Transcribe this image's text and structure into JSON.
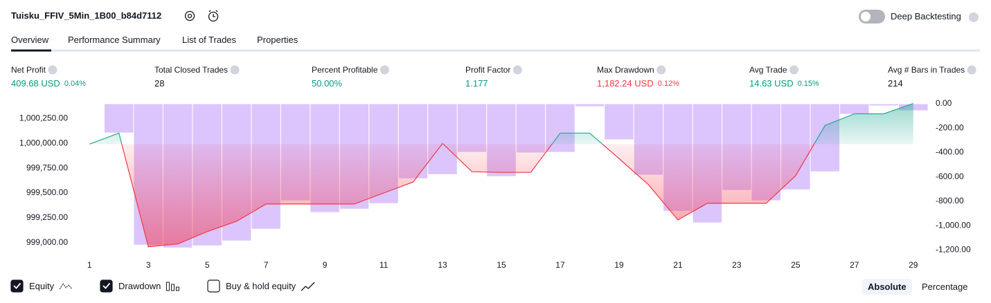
{
  "header": {
    "title": "Tuisku_FFIV_5Min_1B00_b84d7112",
    "toggle_label": "Deep Backtesting",
    "toggle_on": false
  },
  "tabs": {
    "items": [
      "Overview",
      "Performance Summary",
      "List of Trades",
      "Properties"
    ],
    "active": 0
  },
  "stats": [
    {
      "label": "Net Profit",
      "value": "409.68 USD",
      "sub": "0.04%",
      "color": "#089981"
    },
    {
      "label": "Total Closed Trades",
      "value": "28",
      "color": "#131722"
    },
    {
      "label": "Percent Profitable",
      "value": "50.00%",
      "color": "#089981"
    },
    {
      "label": "Profit Factor",
      "value": "1.177",
      "color": "#089981"
    },
    {
      "label": "Max Drawdown",
      "value": "1,182.24 USD",
      "sub": "0.12%",
      "color": "#f23645"
    },
    {
      "label": "Avg Trade",
      "value": "14.63 USD",
      "sub": "0.15%",
      "color": "#089981"
    },
    {
      "label": "Avg # Bars in Trades",
      "value": "214",
      "color": "#131722"
    }
  ],
  "chart_data": {
    "type": "line",
    "x": [
      1,
      2,
      3,
      4,
      5,
      6,
      7,
      8,
      9,
      10,
      11,
      12,
      13,
      14,
      15,
      16,
      17,
      18,
      19,
      20,
      21,
      22,
      23,
      24,
      25,
      26,
      27,
      28,
      29
    ],
    "xlim": [
      0.5,
      29.5
    ],
    "xticks": [
      1,
      3,
      5,
      7,
      9,
      11,
      13,
      15,
      17,
      19,
      21,
      23,
      25,
      27,
      29
    ],
    "ylim": [
      998900,
      1000400
    ],
    "yticks": [
      {
        "value": 999000,
        "label": "999,000.00"
      },
      {
        "value": 999250,
        "label": "999,250.00"
      },
      {
        "value": 999500,
        "label": "999,500.00"
      },
      {
        "value": 999750,
        "label": "999,750.00"
      },
      {
        "value": 1000000,
        "label": "1,000,000.00"
      },
      {
        "value": 1000250,
        "label": "1,000,250.00"
      }
    ],
    "y2lim": [
      -1220,
      0
    ],
    "y2ticks": [
      {
        "value": 0,
        "label": "0.00"
      },
      {
        "value": -200,
        "label": "-200.00"
      },
      {
        "value": -400,
        "label": "-400.00"
      },
      {
        "value": -600,
        "label": "-600.00"
      },
      {
        "value": -800,
        "label": "-800.00"
      },
      {
        "value": -1000,
        "label": "-1,000.00"
      },
      {
        "value": -1200,
        "label": "-1,200.00"
      }
    ],
    "grid": false,
    "series": [
      {
        "name": "Equity",
        "type": "line",
        "checked": true,
        "color_up": "#22ab94",
        "color_down": "#f23645",
        "values": [
          999993,
          1000104,
          998958,
          998986,
          999111,
          999215,
          999389,
          999389,
          999389,
          999389,
          999500,
          999611,
          1000000,
          999715,
          999708,
          999708,
          1000104,
          1000104,
          999847,
          999583,
          999229,
          999396,
          999396,
          999396,
          999674,
          1000181,
          1000299,
          1000299,
          1000403
        ]
      },
      {
        "name": "Drawdown",
        "type": "bar",
        "axis": "y2",
        "checked": true,
        "color": "#dcc4fd",
        "values": [
          -5,
          -239,
          -1159,
          -1182,
          -1165,
          -1125,
          -1028,
          -795,
          -892,
          -864,
          -818,
          -614,
          -580,
          -398,
          -597,
          -403,
          -398,
          -23,
          -295,
          -585,
          -881,
          -977,
          -710,
          -795,
          -705,
          -557,
          -85,
          -17,
          -57
        ]
      }
    ],
    "extra_legend": [
      {
        "name": "Buy & hold equity",
        "checked": false
      }
    ]
  },
  "footer": {
    "modes": [
      "Absolute",
      "Percentage"
    ],
    "active": 0
  }
}
